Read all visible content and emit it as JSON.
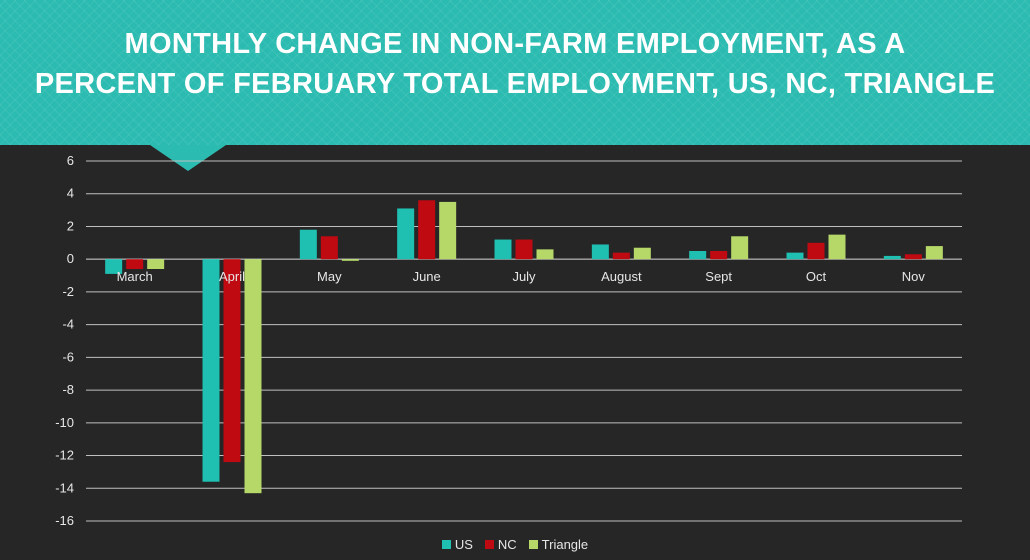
{
  "chart_data": {
    "type": "bar",
    "title": "MONTHLY CHANGE IN NON-FARM EMPLOYMENT, AS A PERCENT OF FEBRUARY TOTAL EMPLOYMENT, US, NC, TRIANGLE",
    "title_lines": [
      "MONTHLY CHANGE IN NON-FARM EMPLOYMENT, AS A",
      "PERCENT OF FEBRUARY TOTAL EMPLOYMENT, US, NC, TRIANGLE"
    ],
    "categories": [
      "March",
      "April",
      "May",
      "June",
      "July",
      "August",
      "Sept",
      "Oct",
      "Nov"
    ],
    "series": [
      {
        "name": "US",
        "color": "#1fbfb2",
        "values": [
          -0.9,
          -13.6,
          1.8,
          3.1,
          1.2,
          0.9,
          0.5,
          0.4,
          0.2
        ]
      },
      {
        "name": "NC",
        "color": "#c00a12",
        "values": [
          -0.6,
          -12.4,
          1.4,
          3.6,
          1.2,
          0.4,
          0.5,
          1.0,
          0.3
        ]
      },
      {
        "name": "Triangle",
        "color": "#b6d869",
        "values": [
          -0.6,
          -14.3,
          -0.1,
          3.5,
          0.6,
          0.7,
          1.4,
          1.5,
          0.8
        ]
      }
    ],
    "ylim": [
      -16,
      6
    ],
    "yticks": [
      6,
      4,
      2,
      0,
      -2,
      -4,
      -6,
      -8,
      -10,
      -12,
      -14,
      -16
    ],
    "xlabel": "",
    "ylabel": "",
    "grid": true,
    "legend_position": "bottom"
  }
}
